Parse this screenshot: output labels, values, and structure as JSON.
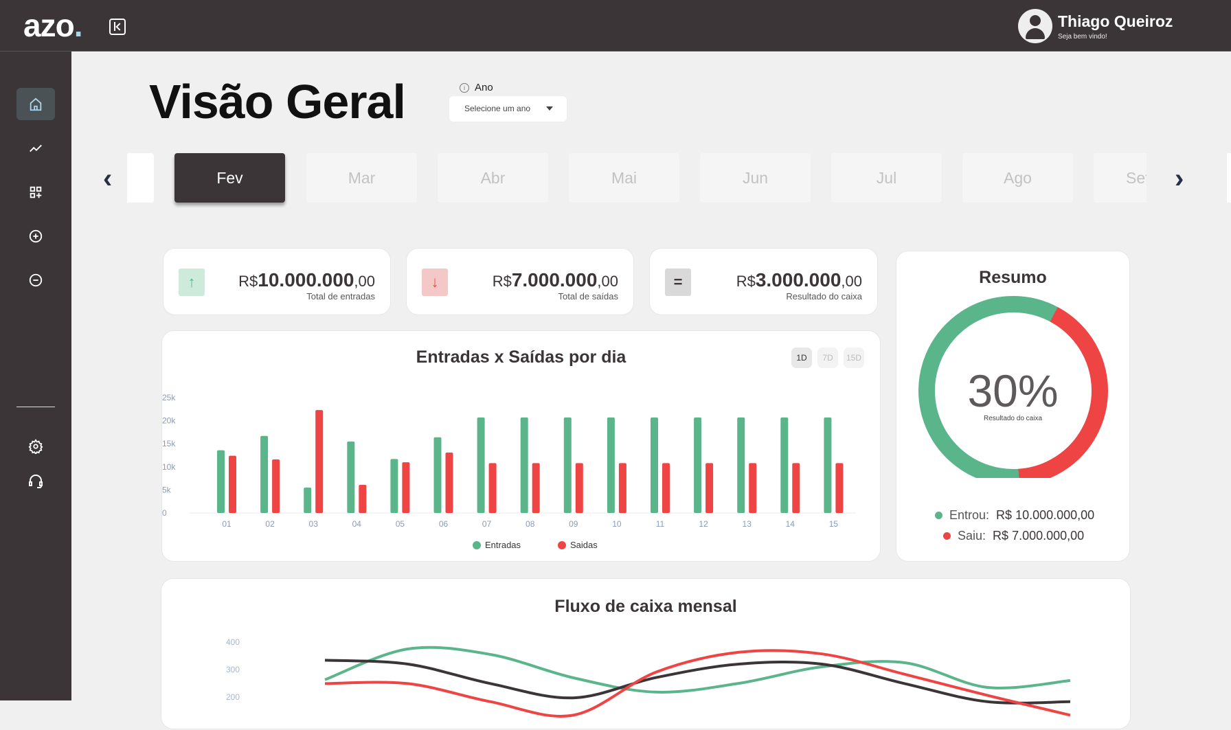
{
  "header": {
    "logo": "azo",
    "logo_dot": ".",
    "user_name": "Thiago Queiroz",
    "user_subtitle": "Seja bem vindo!"
  },
  "sidebar": {
    "items": [
      {
        "icon": "home-icon",
        "active": true
      },
      {
        "icon": "trend-icon"
      },
      {
        "icon": "grid-add-icon"
      },
      {
        "icon": "plus-circle-icon"
      },
      {
        "icon": "minus-circle-icon"
      }
    ],
    "bottom": [
      {
        "icon": "gear-icon"
      },
      {
        "icon": "headset-icon"
      }
    ]
  },
  "page": {
    "title": "Visão Geral",
    "year_label": "Ano",
    "year_placeholder": "Selecione um ano"
  },
  "months": {
    "items": [
      "",
      "Fev",
      "Mar",
      "Abr",
      "Mai",
      "Jun",
      "Jul",
      "Ago",
      "Set"
    ],
    "active": "Fev"
  },
  "kpis": [
    {
      "currency": "R$",
      "int": "10.000.000",
      "dec": ",00",
      "label": "Total de entradas",
      "icon": "arrow-up-icon",
      "icon_color": "#5bb58b",
      "icon_bg": "#cdeadb"
    },
    {
      "currency": "R$",
      "int": "7.000.000",
      "dec": ",00",
      "label": "Total de saídas",
      "icon": "arrow-down-icon",
      "icon_color": "#ef4444",
      "icon_bg": "#f5c8c8"
    },
    {
      "currency": "R$",
      "int": "3.000.000",
      "dec": ",00",
      "label": "Resultado do caixa",
      "icon": "equals-icon",
      "icon_color": "#3b3538",
      "icon_bg": "#d9d9d9"
    }
  ],
  "colors": {
    "entradas": "#5bb58b",
    "saidas": "#ef4444",
    "saldo": "#3b3538"
  },
  "chart_data": [
    {
      "type": "bar",
      "title": "Entradas x Saídas por dia",
      "toggles": [
        "1D",
        "7D",
        "15D"
      ],
      "active_toggle": "1D",
      "categories": [
        "01",
        "02",
        "03",
        "04",
        "05",
        "06",
        "07",
        "08",
        "09",
        "10",
        "11",
        "12",
        "13",
        "14",
        "15"
      ],
      "yticks": [
        "0",
        "5k",
        "10k",
        "15k",
        "20k",
        "25k"
      ],
      "ylim": [
        0,
        25000
      ],
      "series": [
        {
          "name": "Entradas",
          "values": [
            13600,
            16700,
            5500,
            15500,
            11700,
            16400,
            20700,
            20700,
            20700,
            20700,
            20700,
            20700,
            20700,
            20700,
            20700
          ]
        },
        {
          "name": "Saidas",
          "values": [
            12400,
            11600,
            22300,
            6100,
            11000,
            13100,
            10800,
            10800,
            10800,
            10800,
            10800,
            10800,
            10800,
            10800,
            10800
          ]
        }
      ],
      "legend": "bottom"
    },
    {
      "type": "pie",
      "title": "Resumo",
      "center_value": "30%",
      "center_label": "Resultado do caixa",
      "slices": [
        {
          "name": "Entrou",
          "value": 10000000
        },
        {
          "name": "Saiu",
          "value": 7000000
        }
      ],
      "legend": [
        {
          "label": "Entrou:",
          "currency": "R$",
          "value": "10.000.000,00"
        },
        {
          "label": "Saiu:",
          "currency": "R$",
          "value": "7.000.000,00"
        }
      ]
    },
    {
      "type": "line",
      "title": "Fluxo de caixa mensal",
      "yticks": [
        "400",
        "300",
        "200"
      ],
      "series": [
        {
          "values": [
            263,
            375,
            355,
            270,
            218,
            250,
            310,
            325,
            235,
            260
          ]
        },
        {
          "values": [
            334,
            320,
            249,
            197,
            271,
            320,
            320,
            249,
            183,
            183
          ]
        },
        {
          "values": [
            249,
            249,
            183,
            134,
            291,
            363,
            357,
            283,
            206,
            134
          ]
        }
      ]
    }
  ]
}
